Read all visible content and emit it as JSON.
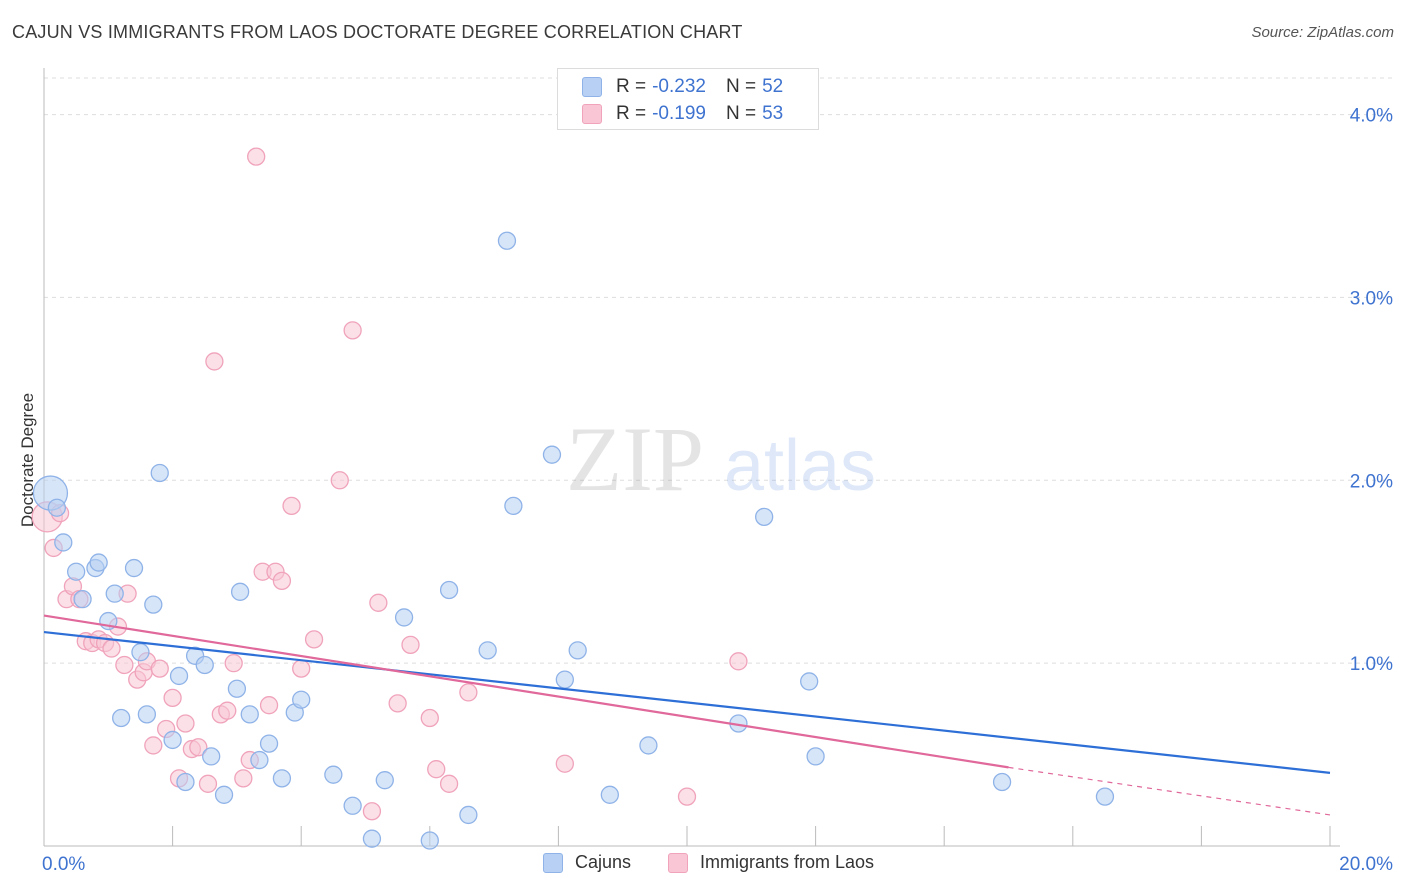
{
  "title": "CAJUN VS IMMIGRANTS FROM LAOS DOCTORATE DEGREE CORRELATION CHART",
  "source": "Source: ZipAtlas.com",
  "watermark": {
    "zip": "ZIP",
    "atlas": "atlas"
  },
  "colors": {
    "blue_fill": "#b7d0f3",
    "blue_stroke": "#8fb3e8",
    "blue_line": "#2d6fd6",
    "pink_fill": "#f8c6d5",
    "pink_stroke": "#f0a3bb",
    "pink_line": "#e0689a",
    "axis_text": "#3f73d0",
    "grid": "#dddddd"
  },
  "legend_top": [
    {
      "r_label": "R =",
      "r_value": "-0.232",
      "n_label": "N =",
      "n_value": "52"
    },
    {
      "r_label": "R =",
      "r_value": "-0.199",
      "n_label": "N =",
      "n_value": "53"
    }
  ],
  "legend_bottom": [
    "Cajuns",
    "Immigrants from Laos"
  ],
  "chart_data": {
    "type": "scatter",
    "title": "CAJUN VS IMMIGRANTS FROM LAOS DOCTORATE DEGREE CORRELATION CHART",
    "xlabel": "",
    "ylabel": "Doctorate Degree",
    "xlim": [
      0,
      20
    ],
    "ylim": [
      0,
      4.2
    ],
    "x_tick_labels": [
      "0.0%",
      "20.0%"
    ],
    "y_ticks": [
      1.0,
      2.0,
      3.0,
      4.0
    ],
    "y_tick_labels": [
      "1.0%",
      "2.0%",
      "3.0%",
      "4.0%"
    ],
    "grid": true,
    "legend_position": "top-center",
    "series": [
      {
        "name": "Cajuns",
        "trend": {
          "x": [
            0,
            20
          ],
          "y": [
            1.17,
            0.4
          ]
        },
        "points": [
          [
            0.1,
            1.93
          ],
          [
            0.2,
            1.85
          ],
          [
            0.3,
            1.66
          ],
          [
            0.5,
            1.5
          ],
          [
            0.6,
            1.35
          ],
          [
            0.8,
            1.52
          ],
          [
            0.85,
            1.55
          ],
          [
            1.0,
            1.23
          ],
          [
            1.1,
            1.38
          ],
          [
            1.2,
            0.7
          ],
          [
            1.4,
            1.52
          ],
          [
            1.5,
            1.06
          ],
          [
            1.6,
            0.72
          ],
          [
            1.7,
            1.32
          ],
          [
            1.8,
            2.04
          ],
          [
            2.0,
            0.58
          ],
          [
            2.1,
            0.93
          ],
          [
            2.2,
            0.35
          ],
          [
            2.35,
            1.04
          ],
          [
            2.5,
            0.99
          ],
          [
            2.6,
            0.49
          ],
          [
            2.8,
            0.28
          ],
          [
            3.0,
            0.86
          ],
          [
            3.05,
            1.39
          ],
          [
            3.2,
            0.72
          ],
          [
            3.35,
            0.47
          ],
          [
            3.5,
            0.56
          ],
          [
            3.7,
            0.37
          ],
          [
            3.9,
            0.73
          ],
          [
            4.0,
            0.8
          ],
          [
            4.5,
            0.39
          ],
          [
            4.8,
            0.22
          ],
          [
            5.1,
            0.04
          ],
          [
            5.3,
            0.36
          ],
          [
            5.6,
            1.25
          ],
          [
            6.0,
            0.03
          ],
          [
            6.3,
            1.4
          ],
          [
            6.6,
            0.17
          ],
          [
            6.9,
            1.07
          ],
          [
            7.2,
            3.31
          ],
          [
            7.3,
            1.86
          ],
          [
            7.9,
            2.14
          ],
          [
            8.1,
            0.91
          ],
          [
            8.3,
            1.07
          ],
          [
            8.8,
            0.28
          ],
          [
            9.4,
            0.55
          ],
          [
            10.8,
            0.67
          ],
          [
            11.2,
            1.8
          ],
          [
            11.9,
            0.9
          ],
          [
            12.0,
            0.49
          ],
          [
            14.9,
            0.35
          ],
          [
            16.5,
            0.27
          ]
        ]
      },
      {
        "name": "Immigrants from Laos",
        "trend": {
          "x": [
            0,
            15
          ],
          "y": [
            1.26,
            0.43
          ]
        },
        "trend_ext": {
          "x": [
            15,
            20
          ],
          "y": [
            0.43,
            0.17
          ]
        },
        "points": [
          [
            0.05,
            1.8
          ],
          [
            0.15,
            1.63
          ],
          [
            0.25,
            1.82
          ],
          [
            0.35,
            1.35
          ],
          [
            0.45,
            1.42
          ],
          [
            0.55,
            1.35
          ],
          [
            0.65,
            1.12
          ],
          [
            0.75,
            1.11
          ],
          [
            0.85,
            1.13
          ],
          [
            0.95,
            1.11
          ],
          [
            1.05,
            1.08
          ],
          [
            1.15,
            1.2
          ],
          [
            1.25,
            0.99
          ],
          [
            1.3,
            1.38
          ],
          [
            1.45,
            0.91
          ],
          [
            1.55,
            0.95
          ],
          [
            1.6,
            1.01
          ],
          [
            1.7,
            0.55
          ],
          [
            1.8,
            0.97
          ],
          [
            1.9,
            0.64
          ],
          [
            2.0,
            0.81
          ],
          [
            2.1,
            0.37
          ],
          [
            2.2,
            0.67
          ],
          [
            2.3,
            0.53
          ],
          [
            2.4,
            0.54
          ],
          [
            2.55,
            0.34
          ],
          [
            2.65,
            2.65
          ],
          [
            2.75,
            0.72
          ],
          [
            2.85,
            0.74
          ],
          [
            2.95,
            1.0
          ],
          [
            3.1,
            0.37
          ],
          [
            3.2,
            0.47
          ],
          [
            3.3,
            3.77
          ],
          [
            3.4,
            1.5
          ],
          [
            3.5,
            0.77
          ],
          [
            3.6,
            1.5
          ],
          [
            3.7,
            1.45
          ],
          [
            3.85,
            1.86
          ],
          [
            4.0,
            0.97
          ],
          [
            4.2,
            1.13
          ],
          [
            4.6,
            2.0
          ],
          [
            4.8,
            2.82
          ],
          [
            5.1,
            0.19
          ],
          [
            5.2,
            1.33
          ],
          [
            5.5,
            0.78
          ],
          [
            5.7,
            1.1
          ],
          [
            6.0,
            0.7
          ],
          [
            6.1,
            0.42
          ],
          [
            6.3,
            0.34
          ],
          [
            6.6,
            0.84
          ],
          [
            8.1,
            0.45
          ],
          [
            10.0,
            0.27
          ],
          [
            10.8,
            1.01
          ]
        ]
      }
    ]
  }
}
